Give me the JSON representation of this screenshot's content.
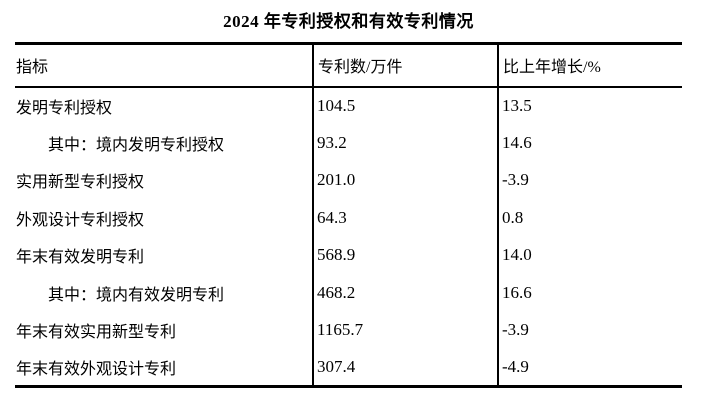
{
  "title": "2024 年专利授权和有效专利情况",
  "table": {
    "columns": [
      "指标",
      "专利数/万件",
      "比上年增长/%"
    ],
    "rows": [
      {
        "indicator": "发明专利授权",
        "indent": false,
        "patents": "104.5",
        "growth": "13.5"
      },
      {
        "indicator": "其中：境内发明专利授权",
        "indent": true,
        "patents": "93.2",
        "growth": "14.6"
      },
      {
        "indicator": "实用新型专利授权",
        "indent": false,
        "patents": "201.0",
        "growth": "-3.9"
      },
      {
        "indicator": "外观设计专利授权",
        "indent": false,
        "patents": "64.3",
        "growth": "0.8"
      },
      {
        "indicator": "年末有效发明专利",
        "indent": false,
        "patents": "568.9",
        "growth": "14.0"
      },
      {
        "indicator": "其中：境内有效发明专利",
        "indent": true,
        "patents": "468.2",
        "growth": "16.6"
      },
      {
        "indicator": "年末有效实用新型专利",
        "indent": false,
        "patents": "1165.7",
        "growth": "-3.9"
      },
      {
        "indicator": "年末有效外观设计专利",
        "indent": false,
        "patents": "307.4",
        "growth": "-4.9"
      }
    ]
  },
  "colors": {
    "text": "#000000",
    "background": "#ffffff",
    "border": "#000000"
  }
}
